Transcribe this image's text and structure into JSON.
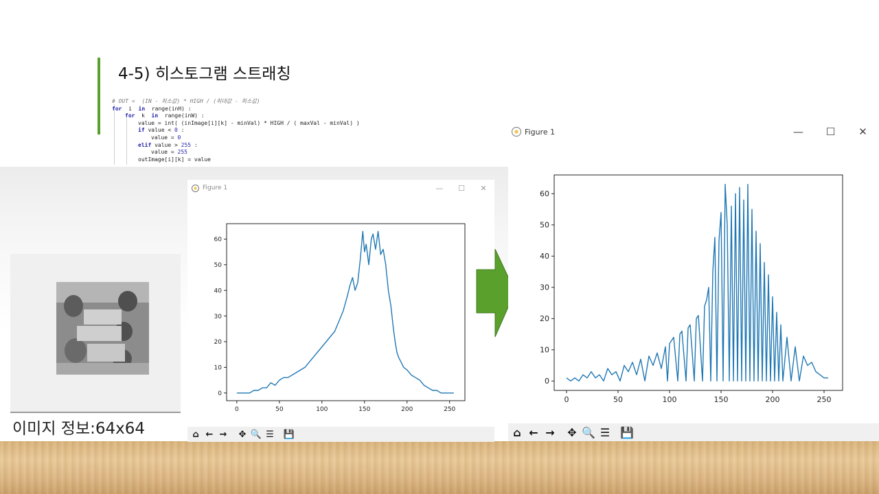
{
  "slide": {
    "title": "4-5) 히스토그램 스트래칭",
    "code_lines": [
      {
        "indent": 0,
        "parts": [
          {
            "t": "# OUT =  (IN - 최소값) * HIGH / (최대값 - 최소값)",
            "c": "cm"
          }
        ]
      },
      {
        "indent": 0,
        "parts": [
          {
            "t": "for",
            "c": "kw"
          },
          {
            "t": "  i  "
          },
          {
            "t": "in",
            "c": "kw"
          },
          {
            "t": "  range(inH) :"
          }
        ]
      },
      {
        "indent": 1,
        "parts": [
          {
            "t": "for",
            "c": "kw"
          },
          {
            "t": "  k  "
          },
          {
            "t": "in",
            "c": "kw"
          },
          {
            "t": "  range(inW) :"
          }
        ]
      },
      {
        "indent": 2,
        "parts": [
          {
            "t": "value = int( (inImage[i][k] - minVal) * HIGH / ( maxVal - minVal) )"
          }
        ]
      },
      {
        "indent": 2,
        "parts": [
          {
            "t": "if",
            "c": "kw"
          },
          {
            "t": " value < "
          },
          {
            "t": "0",
            "c": "num"
          },
          {
            "t": " :"
          }
        ]
      },
      {
        "indent": 3,
        "parts": [
          {
            "t": "value = "
          },
          {
            "t": "0",
            "c": "num"
          }
        ]
      },
      {
        "indent": 2,
        "parts": [
          {
            "t": "elif",
            "c": "kw"
          },
          {
            "t": " value > "
          },
          {
            "t": "255",
            "c": "num"
          },
          {
            "t": " :"
          }
        ]
      },
      {
        "indent": 3,
        "parts": [
          {
            "t": "value = "
          },
          {
            "t": "255",
            "c": "num"
          }
        ]
      },
      {
        "indent": 2,
        "parts": [
          {
            "t": "outImage[i][k] = value"
          }
        ]
      }
    ]
  },
  "image_info": {
    "label": "이미지 정보:64x64"
  },
  "windows": {
    "small": {
      "title": "Figure 1"
    },
    "large": {
      "title": "Figure 1"
    }
  },
  "window_controls": {
    "minimize": "—",
    "maximize": "☐",
    "close": "✕"
  },
  "toolbar": {
    "home_glyph": "⌂",
    "back_glyph": "←",
    "forward_glyph": "→",
    "pan_glyph": "✥",
    "zoom_glyph": "🔍",
    "configure_glyph": "☰",
    "save_glyph": "💾"
  },
  "colors": {
    "line": "#1f77b4",
    "accent_bar": "#5aa02c",
    "arrow_fill": "#5aa02c",
    "arrow_stroke": "#3d7a1e"
  },
  "chart_data": [
    {
      "type": "line",
      "xlabel": "",
      "ylabel": "",
      "xlim": [
        -12,
        268
      ],
      "ylim": [
        -3,
        66
      ],
      "xticks": [
        0,
        50,
        100,
        150,
        200,
        250
      ],
      "yticks": [
        0,
        10,
        20,
        30,
        40,
        50,
        60
      ],
      "x": [
        0,
        10,
        15,
        20,
        25,
        30,
        35,
        40,
        45,
        50,
        55,
        60,
        65,
        70,
        75,
        80,
        85,
        90,
        95,
        100,
        105,
        110,
        115,
        120,
        125,
        130,
        133,
        136,
        139,
        142,
        145,
        148,
        150,
        152,
        155,
        158,
        160,
        163,
        166,
        169,
        172,
        175,
        178,
        181,
        184,
        186,
        188,
        190,
        193,
        196,
        200,
        205,
        210,
        215,
        220,
        225,
        230,
        235,
        240,
        245,
        250,
        255
      ],
      "series": [
        {
          "values": [
            0,
            0,
            0,
            1,
            1,
            2,
            2,
            4,
            3,
            5,
            6,
            6,
            7,
            8,
            9,
            10,
            12,
            14,
            16,
            18,
            20,
            22,
            24,
            28,
            32,
            38,
            42,
            45,
            40,
            43,
            52,
            63,
            55,
            58,
            50,
            60,
            62,
            56,
            63,
            54,
            56,
            50,
            40,
            34,
            25,
            20,
            16,
            14,
            12,
            10,
            9,
            7,
            6,
            5,
            3,
            2,
            1,
            1,
            0,
            0,
            0,
            0
          ]
        }
      ]
    },
    {
      "type": "line",
      "xlabel": "",
      "ylabel": "",
      "xlim": [
        -12,
        268
      ],
      "ylim": [
        -3,
        66
      ],
      "xticks": [
        0,
        50,
        100,
        150,
        200,
        250
      ],
      "yticks": [
        0,
        10,
        20,
        30,
        40,
        50,
        60
      ],
      "x": [
        0,
        4,
        8,
        12,
        16,
        20,
        24,
        28,
        32,
        36,
        40,
        44,
        48,
        52,
        56,
        60,
        64,
        68,
        72,
        76,
        80,
        84,
        88,
        92,
        96,
        98,
        100,
        104,
        108,
        110,
        112,
        116,
        118,
        120,
        124,
        126,
        128,
        132,
        134,
        136,
        138,
        140,
        142,
        144,
        146,
        148,
        150,
        152,
        154,
        156,
        158,
        160,
        162,
        164,
        166,
        168,
        170,
        172,
        174,
        176,
        178,
        180,
        182,
        184,
        186,
        188,
        190,
        192,
        194,
        196,
        198,
        200,
        202,
        204,
        206,
        208,
        210,
        214,
        218,
        222,
        226,
        230,
        234,
        238,
        242,
        246,
        250,
        254
      ],
      "series": [
        {
          "values": [
            1,
            0,
            1,
            0,
            2,
            1,
            3,
            1,
            2,
            0,
            4,
            2,
            3,
            0,
            5,
            3,
            6,
            2,
            7,
            0,
            8,
            5,
            9,
            4,
            11,
            0,
            12,
            14,
            0,
            15,
            16,
            0,
            17,
            18,
            0,
            20,
            21,
            0,
            24,
            26,
            30,
            0,
            35,
            46,
            0,
            45,
            54,
            0,
            63,
            50,
            0,
            56,
            0,
            60,
            0,
            62,
            0,
            58,
            0,
            63,
            0,
            55,
            0,
            48,
            0,
            44,
            0,
            38,
            0,
            34,
            0,
            27,
            0,
            22,
            0,
            18,
            0,
            14,
            0,
            11,
            0,
            8,
            5,
            6,
            3,
            2,
            1,
            1
          ]
        }
      ]
    }
  ]
}
